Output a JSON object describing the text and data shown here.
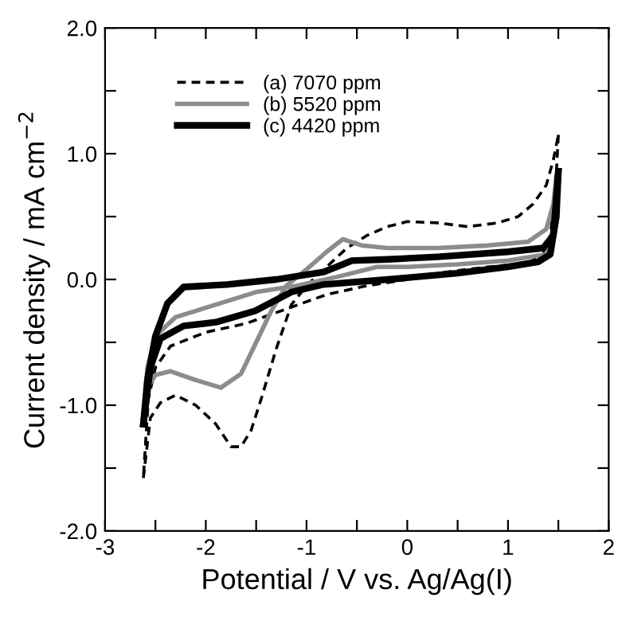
{
  "chart_data": {
    "type": "line",
    "xlabel": "Potential / V vs. Ag/Ag(I)",
    "ylabel": "Current density / mA cm$^{−2}$",
    "xlim": [
      -3,
      2
    ],
    "ylim": [
      -2,
      2
    ],
    "xticks": [
      {
        "value": -3,
        "label": "-3"
      },
      {
        "value": -2.5,
        "label": null
      },
      {
        "value": -2,
        "label": "-2"
      },
      {
        "value": -1.5,
        "label": null
      },
      {
        "value": -1,
        "label": "-1"
      },
      {
        "value": -0.5,
        "label": null
      },
      0,
      {
        "value": 0.5,
        "label": null
      },
      1,
      {
        "value": 1.5,
        "label": null
      },
      2
    ],
    "yticks": [
      {
        "value": -2,
        "label": "-2.0"
      },
      {
        "value": -1.5,
        "label": null
      },
      {
        "value": -1,
        "label": "-1.0"
      },
      {
        "value": -0.5,
        "label": null
      },
      {
        "value": 0,
        "label": "0.0"
      },
      {
        "value": 0.5,
        "label": null
      },
      {
        "value": 1,
        "label": "1.0"
      },
      {
        "value": 1.5,
        "label": null
      },
      {
        "value": 2,
        "label": "2.0"
      }
    ],
    "grid": false,
    "legend": "top left",
    "series": [
      {
        "name": "(a) 7070 ppm",
        "color": "#000000",
        "line_style": "dashed",
        "x": [
          -2.62,
          -2.55,
          -2.45,
          -2.3,
          -2.1,
          -1.9,
          -1.75,
          -1.65,
          -1.55,
          -1.45,
          -1.3,
          -1.15,
          -1.0,
          -0.8,
          -0.6,
          -0.4,
          -0.2,
          0.0,
          0.3,
          0.6,
          0.9,
          1.1,
          1.25,
          1.38,
          1.45,
          1.5
        ],
        "values": [
          -1.58,
          -1.1,
          -0.98,
          -0.92,
          -1.0,
          -1.15,
          -1.33,
          -1.33,
          -1.2,
          -0.95,
          -0.55,
          -0.2,
          -0.05,
          0.1,
          0.25,
          0.35,
          0.42,
          0.46,
          0.45,
          0.42,
          0.45,
          0.5,
          0.6,
          0.75,
          0.95,
          1.15
        ]
      },
      {
        "color": "#000000",
        "line_style": "dashed",
        "x": [
          1.5,
          1.47,
          1.42,
          1.35,
          1.2,
          0.8,
          0.4,
          0.0,
          -0.4,
          -0.8,
          -1.15,
          -1.6,
          -2.0,
          -2.35,
          -2.5,
          -2.57,
          -2.62
        ],
        "values": [
          1.15,
          0.7,
          0.35,
          0.2,
          0.13,
          0.1,
          0.06,
          0.0,
          -0.05,
          -0.12,
          -0.22,
          -0.35,
          -0.42,
          -0.53,
          -0.7,
          -0.95,
          -1.58
        ]
      },
      {
        "name": "(b) 5520 ppm",
        "color": "#8c8c8c",
        "line_style": "solid",
        "x": [
          -2.62,
          -2.57,
          -2.5,
          -2.35,
          -2.1,
          -1.85,
          -1.65,
          -1.5,
          -1.35,
          -1.2,
          -1.0,
          -0.8,
          -0.64,
          -0.45,
          -0.2,
          0.3,
          0.8,
          1.2,
          1.38,
          1.45,
          1.48
        ],
        "values": [
          -1.15,
          -0.85,
          -0.76,
          -0.73,
          -0.8,
          -0.86,
          -0.75,
          -0.5,
          -0.25,
          -0.05,
          0.08,
          0.22,
          0.32,
          0.27,
          0.25,
          0.25,
          0.27,
          0.3,
          0.4,
          0.6,
          0.82
        ]
      },
      {
        "color": "#8c8c8c",
        "line_style": "solid",
        "x": [
          1.48,
          1.45,
          1.38,
          1.0,
          0.5,
          0.0,
          -0.3,
          -0.7,
          -1.1,
          -1.5,
          -1.9,
          -2.3,
          -2.5,
          -2.58,
          -2.62
        ],
        "values": [
          0.82,
          0.4,
          0.2,
          0.15,
          0.12,
          0.1,
          0.1,
          0.02,
          -0.05,
          -0.1,
          -0.2,
          -0.3,
          -0.45,
          -0.7,
          -1.15
        ]
      },
      {
        "name": "(c) 4420 ppm",
        "color": "#000000",
        "line_style": "solid",
        "x": [
          -2.62,
          -2.55,
          -2.45,
          -2.22,
          -1.9,
          -1.51,
          -1.15,
          -0.83,
          -0.19,
          0.5,
          1.0,
          1.3,
          1.42,
          1.48,
          1.5
        ],
        "values": [
          -1.15,
          -0.7,
          -0.47,
          -0.37,
          -0.34,
          -0.25,
          -0.1,
          -0.04,
          0.0,
          0.05,
          0.1,
          0.14,
          0.2,
          0.5,
          0.86
        ]
      },
      {
        "color": "#000000",
        "line_style": "solid",
        "x": [
          1.5,
          1.45,
          1.35,
          1.0,
          0.3,
          -0.19,
          -0.55,
          -0.7,
          -0.83,
          -1.3,
          -1.79,
          -2.22,
          -2.38,
          -2.5,
          -2.58,
          -2.62
        ],
        "values": [
          0.86,
          0.35,
          0.25,
          0.22,
          0.18,
          0.16,
          0.15,
          0.1,
          0.06,
          0.0,
          -0.04,
          -0.06,
          -0.19,
          -0.45,
          -0.8,
          -1.15
        ]
      }
    ]
  }
}
